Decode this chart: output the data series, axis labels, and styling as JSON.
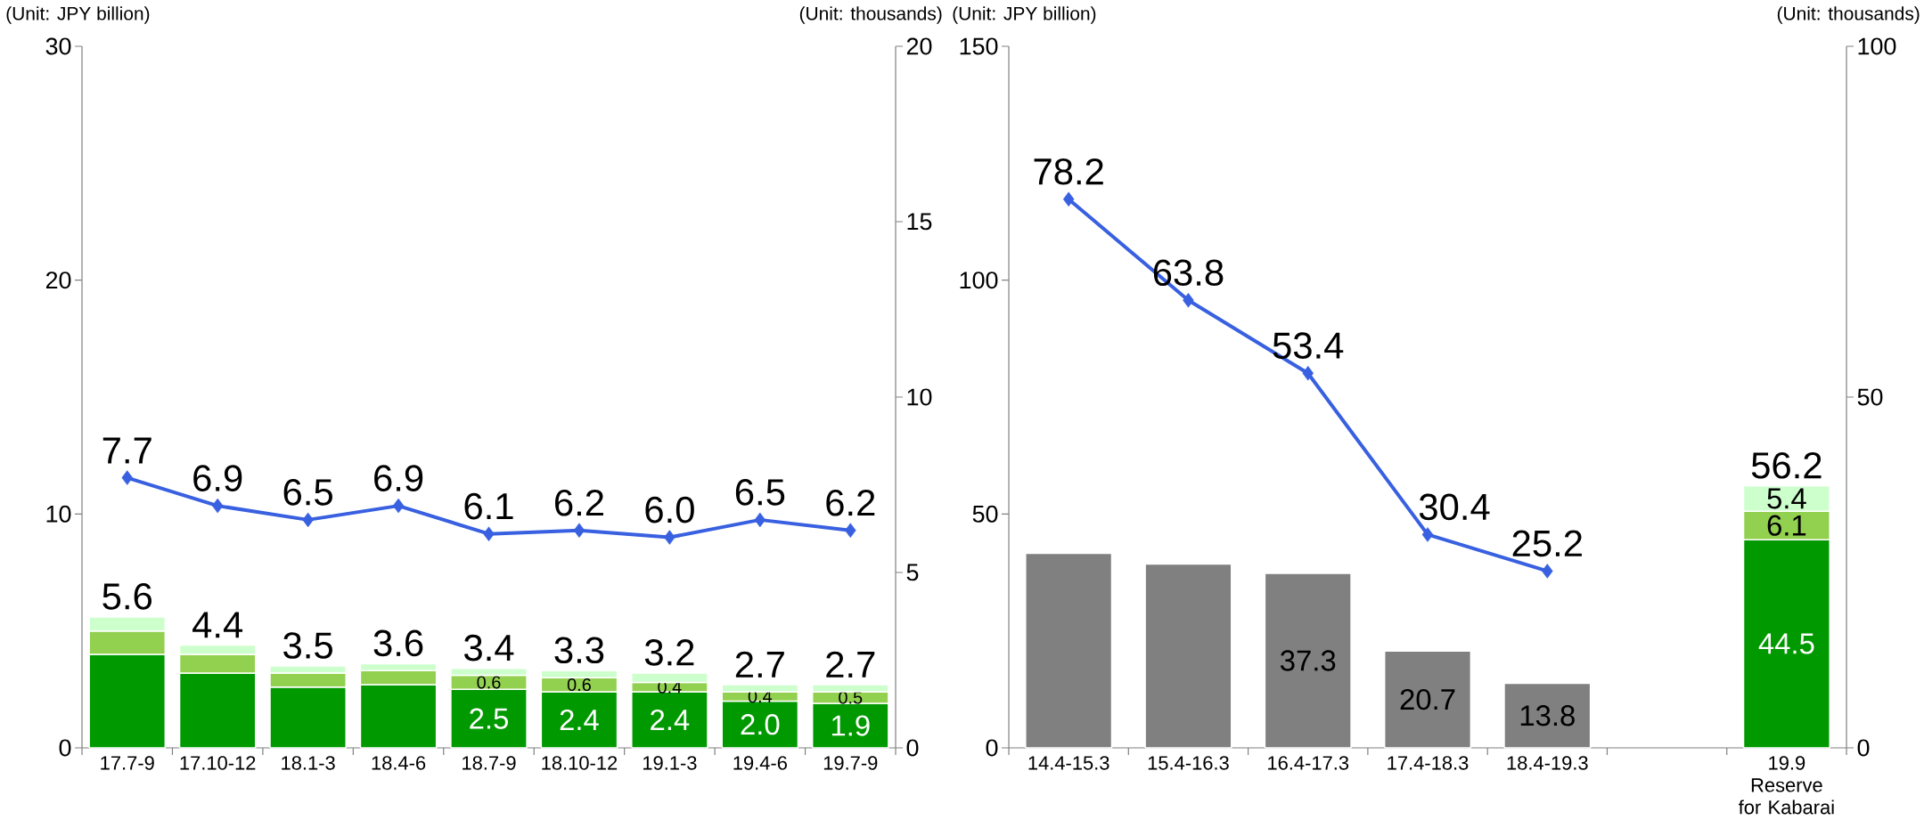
{
  "chart_data": [
    {
      "type": "bar",
      "stacked": true,
      "ylabel": "(Unit: JPY billion)",
      "y2label": "(Unit: thousands)",
      "categories": [
        "17.7-9",
        "17.10-12",
        "18.1-3",
        "18.4-6",
        "18.7-9",
        "18.10-12",
        "19.1-3",
        "19.4-6",
        "19.7-9"
      ],
      "ylim": [
        0,
        30
      ],
      "yticks": [
        0,
        10,
        20,
        30
      ],
      "y2lim": [
        0,
        20
      ],
      "y2ticks": [
        0,
        5,
        10,
        15,
        20
      ],
      "totals": [
        "5.6",
        "4.4",
        "3.5",
        "3.6",
        "3.4",
        "3.3",
        "3.2",
        "2.7",
        "2.7"
      ],
      "series": [
        {
          "type": "bar",
          "color": "#009900",
          "values": [
            4.0,
            3.2,
            2.6,
            2.7,
            2.5,
            2.4,
            2.4,
            2.0,
            1.9
          ],
          "value_labels": [
            null,
            null,
            null,
            null,
            "2.5",
            "2.4",
            "2.4",
            "2.0",
            "1.9"
          ]
        },
        {
          "type": "bar",
          "color": "#92d050",
          "values": [
            1.0,
            0.8,
            0.6,
            0.6,
            0.6,
            0.6,
            0.4,
            0.4,
            0.5
          ],
          "value_labels": [
            null,
            null,
            null,
            null,
            "0.6",
            "0.6",
            "0.4",
            "0.4",
            "0.5"
          ]
        },
        {
          "type": "bar",
          "color": "#ccffcc",
          "values": [
            0.6,
            0.4,
            0.3,
            0.3,
            0.3,
            0.3,
            0.4,
            0.3,
            0.3
          ]
        },
        {
          "type": "line",
          "axis": "y2",
          "color": "#3860e0",
          "marker": "diamond",
          "values": [
            7.7,
            6.9,
            6.5,
            6.9,
            6.1,
            6.2,
            6.0,
            6.5,
            6.2
          ],
          "value_labels": [
            "7.7",
            "6.9",
            "6.5",
            "6.9",
            "6.1",
            "6.2",
            "6.0",
            "6.5",
            "6.2"
          ]
        }
      ]
    },
    {
      "type": "bar",
      "stacked": true,
      "ylabel": "(Unit: JPY billion)",
      "y2label": "(Unit: thousands)",
      "categories": [
        "14.4-15.3",
        "15.4-16.3",
        "16.4-17.3",
        "17.4-18.3",
        "18.4-19.3",
        null,
        "19.9 Reserve for Kabarai"
      ],
      "ylim": [
        0,
        150
      ],
      "yticks": [
        0,
        50,
        100,
        150
      ],
      "y2lim": [
        0,
        100
      ],
      "y2ticks": [
        0,
        50,
        100
      ],
      "totals": [
        null,
        null,
        null,
        null,
        null,
        null,
        "56.2"
      ],
      "series": [
        {
          "type": "bar",
          "color": "#808080",
          "values": [
            41.6,
            39.3,
            37.3,
            20.7,
            13.8,
            null,
            null
          ],
          "value_labels": [
            null,
            null,
            "37.3",
            "20.7",
            "13.8",
            null,
            null
          ]
        },
        {
          "type": "bar",
          "color": "#009900",
          "values": [
            null,
            null,
            null,
            null,
            null,
            null,
            44.5
          ],
          "value_labels": [
            null,
            null,
            null,
            null,
            null,
            null,
            "44.5"
          ]
        },
        {
          "type": "bar",
          "color": "#92d050",
          "values": [
            null,
            null,
            null,
            null,
            null,
            null,
            6.1
          ],
          "value_labels": [
            null,
            null,
            null,
            null,
            null,
            null,
            "6.1"
          ]
        },
        {
          "type": "bar",
          "color": "#ccffcc",
          "values": [
            null,
            null,
            null,
            null,
            null,
            null,
            5.4
          ],
          "value_labels": [
            null,
            null,
            null,
            null,
            null,
            null,
            "5.4"
          ]
        },
        {
          "type": "line",
          "axis": "y2",
          "color": "#3860e0",
          "marker": "diamond",
          "values": [
            78.2,
            63.8,
            53.4,
            30.4,
            25.2,
            null,
            null
          ],
          "value_labels": [
            "78.2",
            "63.8",
            "53.4",
            "30.4",
            "25.2",
            null,
            null
          ]
        }
      ]
    }
  ]
}
